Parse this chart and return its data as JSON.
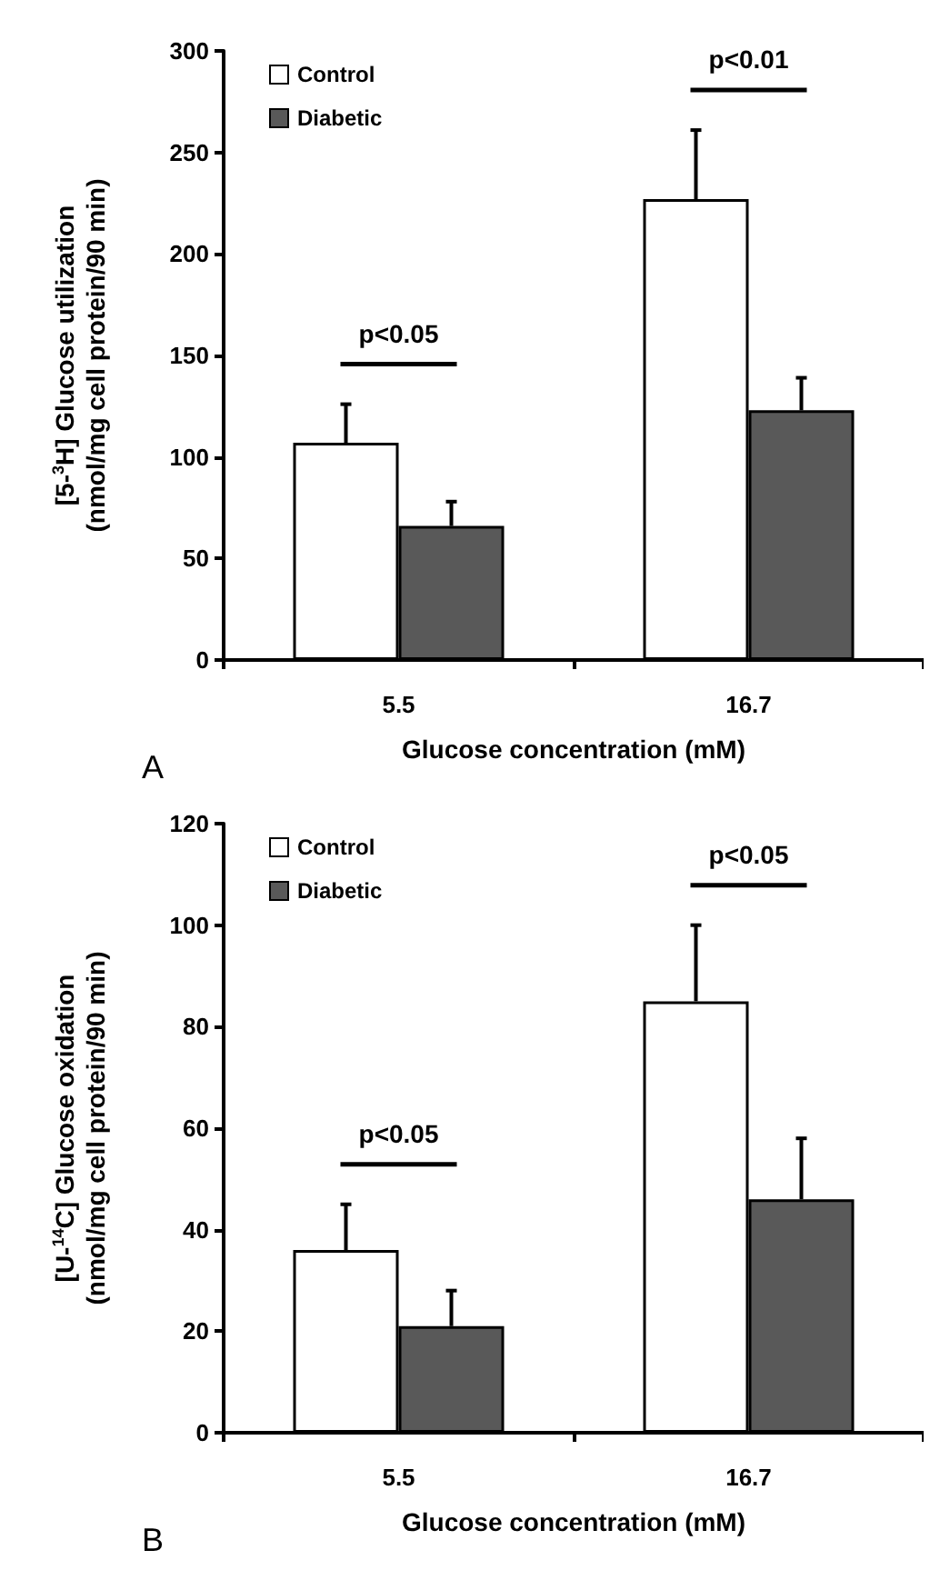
{
  "chart_data": [
    {
      "type": "bar",
      "categories": [
        "5.5",
        "16.7"
      ],
      "xlabel": "Glucose concentration (mM)",
      "ylabel": "[5-$^{3}$H] Glucose utilization (nmol/mg cell protein/90 min)",
      "ylim": [
        0,
        300
      ],
      "yticks": [
        0,
        50,
        100,
        150,
        200,
        250,
        300
      ],
      "grid": false,
      "legend": "top left",
      "series": [
        {
          "name": "Control",
          "color": "#ffffff",
          "values": [
            107,
            227
          ],
          "errors": [
            [
              107,
              126
            ],
            [
              227,
              261
            ]
          ]
        },
        {
          "name": "Diabetic",
          "color": "#595959",
          "values": [
            66,
            123
          ],
          "errors": [
            [
              66,
              78
            ],
            [
              123,
              139
            ]
          ]
        }
      ],
      "annotations": [
        "p<0.05",
        "p<0.01",
        "A"
      ]
    },
    {
      "type": "bar",
      "categories": [
        "5.5",
        "16.7"
      ],
      "xlabel": "Glucose concentration (mM)",
      "ylabel": "[U-$^{14}$C] Glucose oxidation (nmol/mg cell protein/90 min)",
      "ylim": [
        0,
        120
      ],
      "yticks": [
        0,
        20,
        40,
        60,
        80,
        100,
        120
      ],
      "grid": false,
      "legend": "top left",
      "series": [
        {
          "name": "Control",
          "color": "#ffffff",
          "values": [
            36,
            85
          ],
          "errors": [
            [
              36,
              45
            ],
            [
              85,
              100
            ]
          ]
        },
        {
          "name": "Diabetic",
          "color": "#595959",
          "values": [
            21,
            46
          ],
          "errors": [
            [
              21,
              28
            ],
            [
              46,
              58
            ]
          ]
        }
      ],
      "annotations": [
        "p<0.05",
        "p<0.05",
        "B"
      ]
    }
  ]
}
